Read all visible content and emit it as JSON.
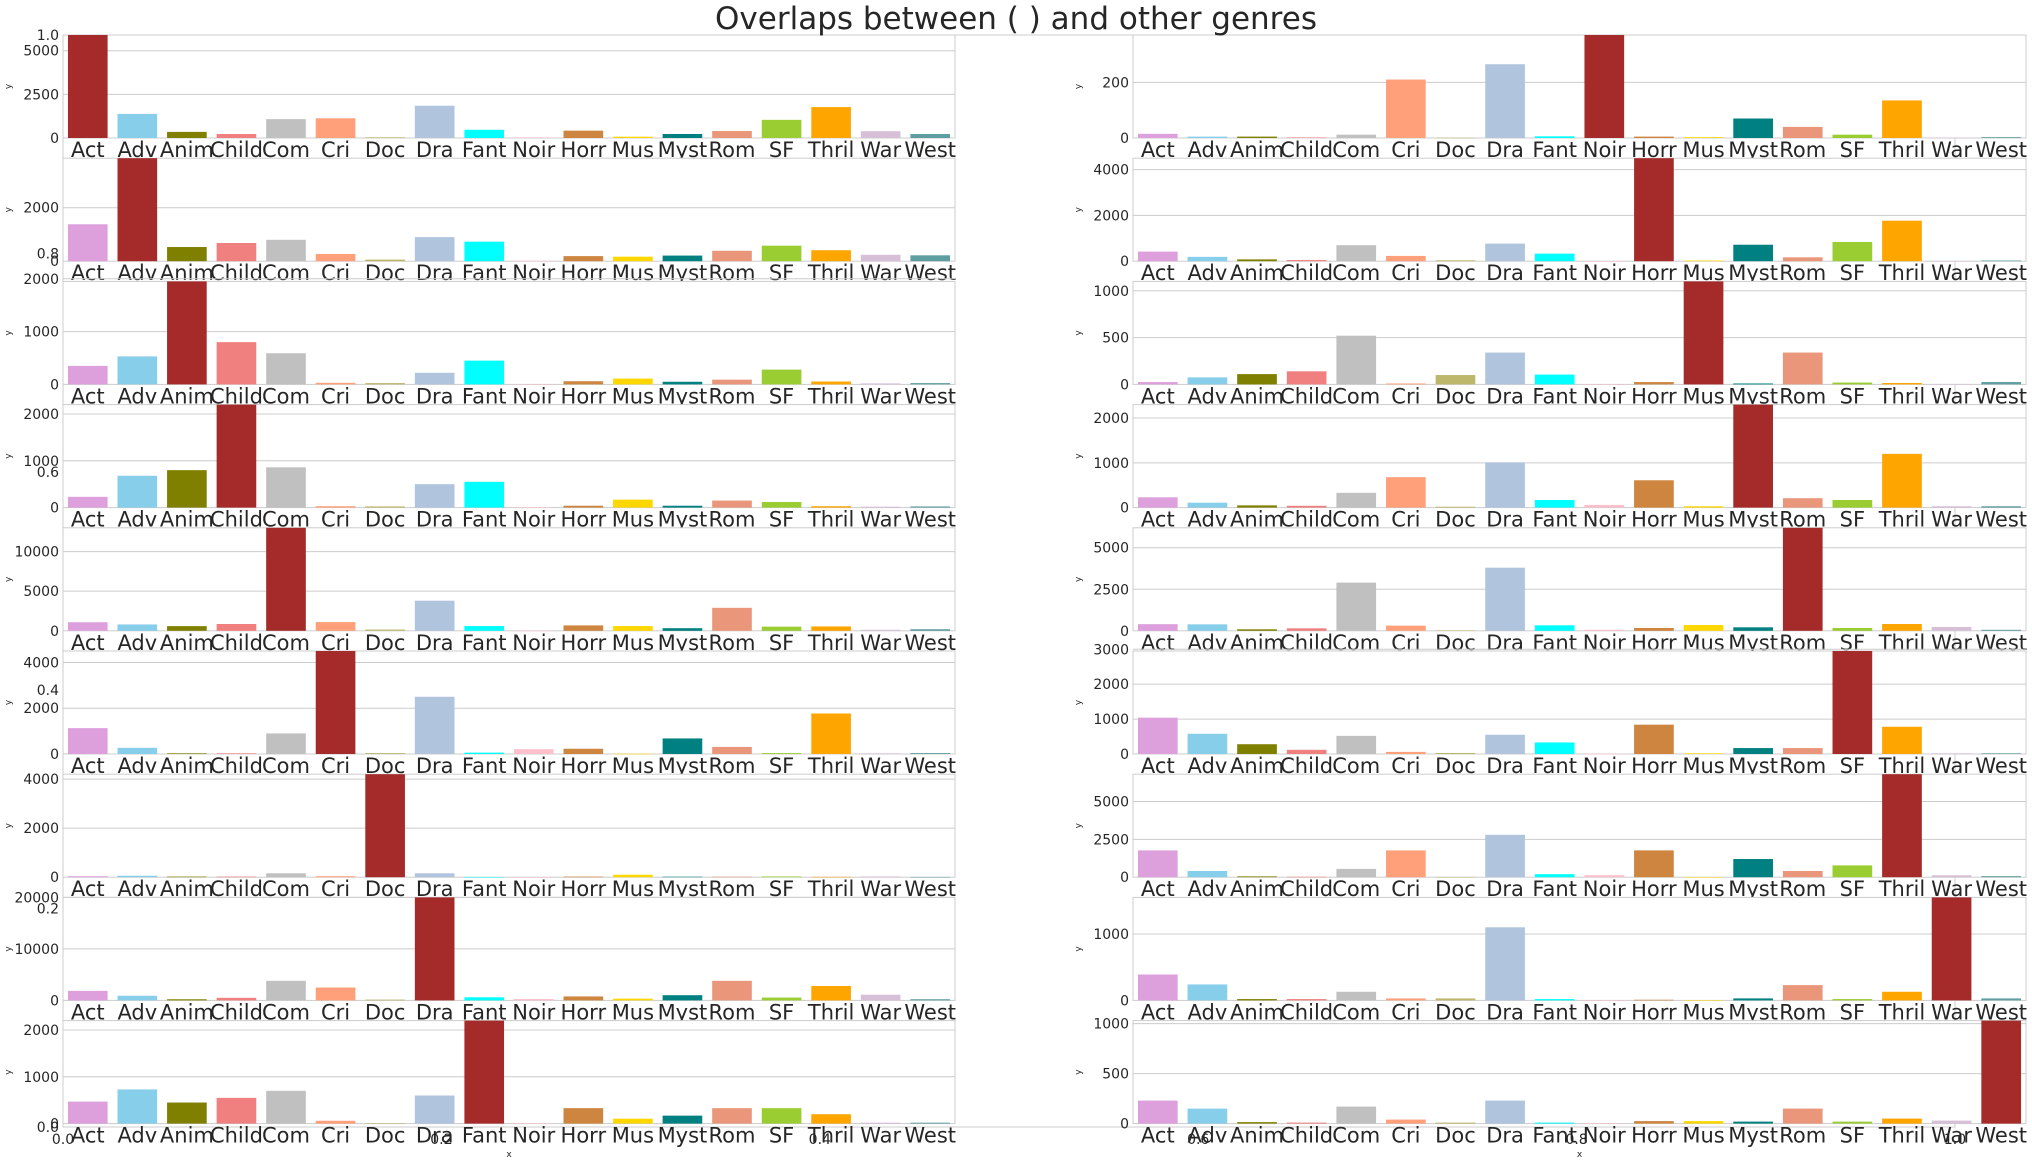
{
  "title": "Overlaps between ( ) and other genres",
  "colors": [
    "#DDA0DD",
    "#87CEEB",
    "#808000",
    "#F08080",
    "#C0C0C0",
    "#FFA07A",
    "#BDB76B",
    "#B0C4DE",
    "#00FFFF",
    "#FFC0CB",
    "#CD853F",
    "#FFD700",
    "#008080",
    "#E9967A",
    "#9ACD32",
    "#FFA500",
    "#D8BFD8",
    "#5F9EA0"
  ],
  "highlight_color": "#A52A2A",
  "background_axes": {
    "xlabel": "x",
    "xticks": [
      "0.0",
      "0.2",
      "0.4",
      "0.6",
      "0.8",
      "1.0"
    ],
    "yticks": [
      "0.0",
      "0.2",
      "0.4",
      "0.6",
      "0.8",
      "1.0"
    ]
  },
  "chart_data": {
    "type": "bar",
    "categories": [
      "Act",
      "Adv",
      "Anim",
      "Child",
      "Com",
      "Cri",
      "Doc",
      "Dra",
      "Fant",
      "Noir",
      "Horr",
      "Mus",
      "Myst",
      "Rom",
      "SF",
      "Thril",
      "War",
      "West"
    ],
    "subplots": [
      {
        "highlight": "Act",
        "ylabel": "y",
        "yticks": [
          0,
          2500,
          5000
        ],
        "ylim": [
          0,
          5900
        ],
        "values": [
          5900,
          1380,
          350,
          230,
          1080,
          1130,
          40,
          1850,
          470,
          35,
          420,
          75,
          230,
          400,
          1040,
          1770,
          390,
          230
        ]
      },
      {
        "highlight": "Noir",
        "ylabel": "y",
        "yticks": [
          0,
          200
        ],
        "ylim": [
          0,
          370
        ],
        "values": [
          15,
          5,
          5,
          2,
          12,
          210,
          1,
          265,
          6,
          370,
          5,
          3,
          70,
          40,
          12,
          135,
          1,
          3
        ]
      },
      {
        "highlight": "Adv",
        "ylabel": "y",
        "yticks": [
          0,
          2000
        ],
        "ylim": [
          0,
          3850
        ],
        "values": [
          1380,
          3850,
          530,
          680,
          800,
          270,
          60,
          900,
          730,
          15,
          190,
          170,
          210,
          390,
          580,
          410,
          240,
          220
        ]
      },
      {
        "highlight": "Horr",
        "ylabel": "y",
        "yticks": [
          0,
          2000,
          4000
        ],
        "ylim": [
          0,
          4500
        ],
        "values": [
          420,
          190,
          80,
          50,
          700,
          230,
          40,
          770,
          330,
          5,
          4500,
          30,
          720,
          170,
          840,
          1770,
          10,
          30
        ]
      },
      {
        "highlight": "Anim",
        "ylabel": "y",
        "yticks": [
          0,
          1000,
          2000
        ],
        "ylim": [
          0,
          1950
        ],
        "values": [
          350,
          530,
          1950,
          800,
          590,
          30,
          25,
          220,
          450,
          1,
          60,
          110,
          50,
          90,
          280,
          55,
          20,
          25
        ]
      },
      {
        "highlight": "Mus",
        "ylabel": "y",
        "yticks": [
          0,
          500,
          1000
        ],
        "ylim": [
          0,
          1100
        ],
        "values": [
          25,
          75,
          110,
          140,
          520,
          10,
          100,
          340,
          105,
          2,
          25,
          1100,
          10,
          340,
          20,
          15,
          5,
          25
        ]
      },
      {
        "highlight": "Child",
        "ylabel": "y",
        "yticks": [
          0,
          1000,
          2000
        ],
        "ylim": [
          0,
          2200
        ],
        "values": [
          230,
          680,
          800,
          2200,
          860,
          30,
          25,
          500,
          550,
          1,
          40,
          170,
          40,
          150,
          120,
          30,
          20,
          25
        ]
      },
      {
        "highlight": "Myst",
        "ylabel": "y",
        "yticks": [
          0,
          1000,
          2000
        ],
        "ylim": [
          0,
          2300
        ],
        "values": [
          230,
          110,
          50,
          40,
          330,
          680,
          20,
          1010,
          170,
          60,
          610,
          30,
          2300,
          210,
          170,
          1200,
          30,
          30
        ]
      },
      {
        "highlight": "Com",
        "ylabel": "y",
        "yticks": [
          0,
          5000,
          10000
        ],
        "ylim": [
          0,
          13000
        ],
        "values": [
          1080,
          800,
          590,
          860,
          13000,
          1100,
          160,
          3800,
          600,
          15,
          680,
          600,
          330,
          2900,
          520,
          550,
          130,
          200
        ]
      },
      {
        "highlight": "Rom",
        "ylabel": "y",
        "yticks": [
          0,
          2500,
          5000
        ],
        "ylim": [
          0,
          6200
        ],
        "values": [
          400,
          390,
          90,
          150,
          2900,
          310,
          20,
          3800,
          330,
          60,
          170,
          350,
          210,
          6200,
          170,
          410,
          230,
          60
        ]
      },
      {
        "highlight": "Cri",
        "ylabel": "y",
        "yticks": [
          0,
          2000,
          4000
        ],
        "ylim": [
          0,
          4500
        ],
        "values": [
          1130,
          270,
          30,
          30,
          900,
          4500,
          40,
          2500,
          60,
          210,
          230,
          10,
          680,
          310,
          40,
          1770,
          30,
          40
        ]
      },
      {
        "highlight": "SF",
        "ylabel": "y",
        "yticks": [
          0,
          1000,
          2000,
          3000
        ],
        "ylim": [
          0,
          2950
        ],
        "values": [
          1040,
          580,
          280,
          120,
          520,
          60,
          30,
          550,
          330,
          5,
          840,
          20,
          170,
          170,
          2950,
          780,
          20,
          20
        ]
      },
      {
        "highlight": "Doc",
        "ylabel": "y",
        "yticks": [
          0,
          2000,
          4000
        ],
        "ylim": [
          0,
          4200
        ],
        "values": [
          40,
          60,
          25,
          25,
          160,
          40,
          4200,
          160,
          10,
          1,
          25,
          100,
          20,
          20,
          30,
          15,
          30,
          10
        ]
      },
      {
        "highlight": "Thril",
        "ylabel": "y",
        "yticks": [
          0,
          2500,
          5000
        ],
        "ylim": [
          0,
          6800
        ],
        "values": [
          1770,
          410,
          55,
          30,
          550,
          1770,
          15,
          2800,
          200,
          135,
          1770,
          15,
          1200,
          410,
          780,
          6800,
          130,
          70
        ]
      },
      {
        "highlight": "Dra",
        "ylabel": "y",
        "yticks": [
          0,
          10000,
          20000
        ],
        "ylim": [
          0,
          20000
        ],
        "values": [
          1850,
          900,
          220,
          500,
          3800,
          2500,
          160,
          20000,
          600,
          265,
          770,
          340,
          1010,
          3800,
          550,
          2800,
          1100,
          230
        ]
      },
      {
        "highlight": "War",
        "ylabel": "y",
        "yticks": [
          0,
          1000
        ],
        "ylim": [
          0,
          1550
        ],
        "values": [
          390,
          240,
          20,
          20,
          130,
          30,
          30,
          1100,
          20,
          1,
          10,
          5,
          30,
          230,
          20,
          130,
          1550,
          30
        ]
      },
      {
        "highlight": "Fant",
        "ylabel": "y",
        "yticks": [
          0,
          1000,
          2000
        ],
        "ylim": [
          0,
          2200
        ],
        "values": [
          470,
          730,
          450,
          550,
          700,
          60,
          10,
          600,
          2200,
          6,
          330,
          105,
          170,
          330,
          330,
          200,
          20,
          20
        ]
      },
      {
        "highlight": "West",
        "ylabel": "y",
        "yticks": [
          0,
          500,
          1000
        ],
        "ylim": [
          0,
          1030
        ],
        "values": [
          230,
          150,
          15,
          10,
          170,
          40,
          10,
          230,
          10,
          3,
          25,
          25,
          20,
          150,
          20,
          50,
          30,
          1030
        ]
      }
    ]
  }
}
